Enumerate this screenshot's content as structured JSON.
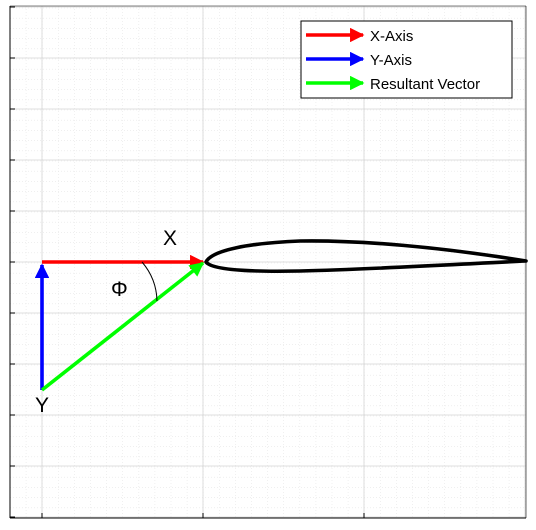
{
  "diagram": {
    "labels": {
      "x_arrow": "X",
      "y_arrow": "Y",
      "angle": "Φ"
    },
    "legend": {
      "placement": "top-right",
      "entries": [
        {
          "label": "X-Axis",
          "color": "#ff0000"
        },
        {
          "label": "Y-Axis",
          "color": "#0000ff"
        },
        {
          "label": "Resultant Vector",
          "color": "#00ff00"
        }
      ]
    },
    "colors": {
      "x_axis_vector": "#ff0000",
      "y_axis_vector": "#0000ff",
      "resultant_vector": "#00ff00",
      "airfoil": "#000000",
      "major_grid": "#d4d4d4",
      "minor_grid": "#e6e6e6"
    },
    "grid": true,
    "shapes": [
      "airfoil",
      "angle-arc"
    ]
  }
}
